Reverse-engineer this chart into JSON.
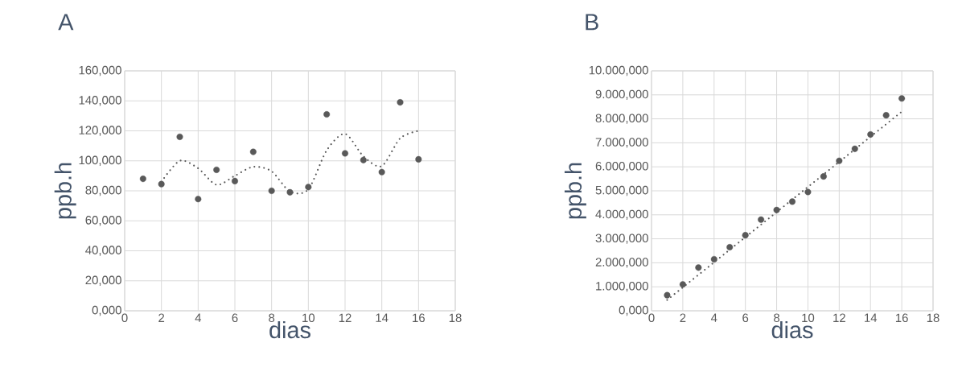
{
  "chart_data": [
    {
      "type": "scatter",
      "title": "A",
      "xlabel": "dias",
      "ylabel": "ppb.h",
      "x": [
        1,
        2,
        3,
        4,
        5,
        6,
        7,
        8,
        9,
        10,
        11,
        12,
        13,
        14,
        15,
        16
      ],
      "marker": "circle",
      "grid": true,
      "series": [
        {
          "color": "#595959",
          "values": [
            88,
            84.5,
            116,
            74.5,
            94,
            86.5,
            106,
            80,
            79,
            82.5,
            131,
            105,
            100.5,
            92.5,
            139,
            101
          ]
        },
        {
          "type": "line",
          "line_style": "dotted",
          "marker": "none",
          "color": "#595959",
          "x": [
            2,
            3,
            4,
            5,
            6,
            7,
            8,
            9,
            10,
            11,
            12,
            13,
            14,
            15,
            16
          ],
          "values": [
            86,
            100,
            95,
            84,
            90,
            96,
            93,
            79.5,
            81,
            107,
            118,
            103,
            96.5,
            115,
            120
          ]
        }
      ],
      "xlim": [
        0,
        18
      ],
      "xticks": [
        0,
        2,
        4,
        6,
        8,
        10,
        12,
        14,
        16,
        18
      ],
      "ylim": [
        0,
        160
      ],
      "yticks": [
        {
          "value": 0,
          "label": "0,000"
        },
        {
          "value": 20,
          "label": "20,000"
        },
        {
          "value": 40,
          "label": "40,000"
        },
        {
          "value": 60,
          "label": "60,000"
        },
        {
          "value": 80,
          "label": "80,000"
        },
        {
          "value": 100,
          "label": "100,000"
        },
        {
          "value": 120,
          "label": "120,000"
        },
        {
          "value": 140,
          "label": "140,000"
        },
        {
          "value": 160,
          "label": "160,000"
        }
      ]
    },
    {
      "type": "scatter",
      "title": "B",
      "xlabel": "dias",
      "ylabel": "ppb.h",
      "x": [
        1,
        2,
        3,
        4,
        5,
        6,
        7,
        8,
        9,
        10,
        11,
        12,
        13,
        14,
        15,
        16
      ],
      "marker": "circle",
      "grid": true,
      "series": [
        {
          "color": "#595959",
          "values": [
            650,
            1100,
            1800,
            2150,
            2650,
            3150,
            3800,
            4200,
            4550,
            4950,
            5600,
            6250,
            6750,
            7350,
            8150,
            8850
          ]
        },
        {
          "type": "line",
          "line_style": "dotted",
          "marker": "none",
          "color": "#595959",
          "x": [
            1,
            16
          ],
          "values": [
            450,
            8300
          ]
        }
      ],
      "xlim": [
        0,
        18
      ],
      "xticks": [
        0,
        2,
        4,
        6,
        8,
        10,
        12,
        14,
        16,
        18
      ],
      "ylim": [
        0,
        10000
      ],
      "yticks": [
        {
          "value": 0,
          "label": "0,000"
        },
        {
          "value": 1000,
          "label": "1.000,000"
        },
        {
          "value": 2000,
          "label": "2.000,000"
        },
        {
          "value": 3000,
          "label": "3.000,000"
        },
        {
          "value": 4000,
          "label": "4.000,000"
        },
        {
          "value": 5000,
          "label": "5.000,000"
        },
        {
          "value": 6000,
          "label": "6.000,000"
        },
        {
          "value": 7000,
          "label": "7.000,000"
        },
        {
          "value": 8000,
          "label": "8.000,000"
        },
        {
          "value": 9000,
          "label": "9.000,000"
        },
        {
          "value": 10000,
          "label": "10.000,000"
        }
      ]
    }
  ]
}
